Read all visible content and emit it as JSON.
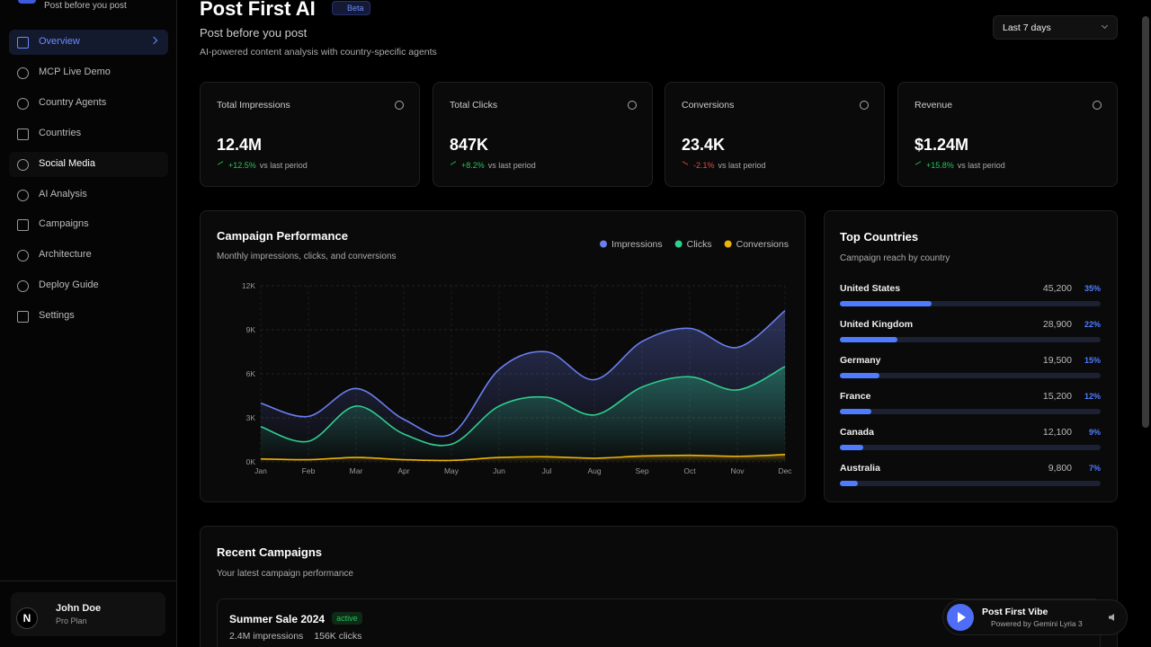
{
  "sidebar": {
    "tagline": "Post before you post",
    "nav": [
      "Overview",
      "MCP Live Demo",
      "Country Agents",
      "Countries",
      "Social Media",
      "AI Analysis",
      "Campaigns",
      "Architecture",
      "Deploy Guide",
      "Settings"
    ],
    "user": {
      "avatar": "N",
      "name": "John Doe",
      "plan": "Pro Plan"
    }
  },
  "header": {
    "title": "Post First AI",
    "badge": "Beta",
    "subtitle": "Post before you post",
    "description": "AI-powered content analysis with country-specific agents",
    "range": "Last 7 days"
  },
  "stats": [
    {
      "label": "Total Impressions",
      "value": "12.4M",
      "change": "+12.5%",
      "suffix": "vs last period"
    },
    {
      "label": "Total Clicks",
      "value": "847K",
      "change": "+8.2%",
      "suffix": "vs last period"
    },
    {
      "label": "Conversions",
      "value": "23.4K",
      "change": "-2.1%",
      "suffix": "vs last period"
    },
    {
      "label": "Revenue",
      "value": "$1.24M",
      "change": "+15.8%",
      "suffix": "vs last period"
    }
  ],
  "chart_data": {
    "type": "line",
    "title": "Campaign Performance",
    "subtitle": "Monthly impressions, clicks, and conversions",
    "categories": [
      "Jan",
      "Feb",
      "Mar",
      "Apr",
      "May",
      "Jun",
      "Jul",
      "Aug",
      "Sep",
      "Oct",
      "Nov",
      "Dec"
    ],
    "series": [
      {
        "name": "Impressions",
        "color": "#6b7ff0",
        "values": [
          4000,
          3100,
          5000,
          2900,
          1900,
          6300,
          7500,
          5600,
          8200,
          9100,
          7800,
          10300
        ]
      },
      {
        "name": "Clicks",
        "color": "#2ecf8f",
        "values": [
          2400,
          1400,
          3800,
          1900,
          1200,
          3800,
          4400,
          3200,
          5100,
          5800,
          4900,
          6500
        ]
      },
      {
        "name": "Conversions",
        "color": "#eab308",
        "values": [
          200,
          150,
          300,
          150,
          100,
          300,
          350,
          250,
          400,
          450,
          380,
          500
        ]
      }
    ],
    "ylim": [
      0,
      12000
    ],
    "yticks": [
      {
        "value": 0,
        "label": "0K"
      },
      {
        "value": 3000,
        "label": "3K"
      },
      {
        "value": 6000,
        "label": "6K"
      },
      {
        "value": 9000,
        "label": "9K"
      },
      {
        "value": 12000,
        "label": "12K"
      }
    ],
    "grid": true,
    "legend": "top-right"
  },
  "top_countries": {
    "title": "Top Countries",
    "subtitle": "Campaign reach by country",
    "items": [
      {
        "name": "United States",
        "reach": "45,200",
        "share": "35%"
      },
      {
        "name": "United Kingdom",
        "reach": "28,900",
        "share": "22%"
      },
      {
        "name": "Germany",
        "reach": "19,500",
        "share": "15%"
      },
      {
        "name": "France",
        "reach": "15,200",
        "share": "12%"
      },
      {
        "name": "Canada",
        "reach": "12,100",
        "share": "9%"
      },
      {
        "name": "Australia",
        "reach": "9,800",
        "share": "7%"
      }
    ]
  },
  "recent_campaigns": {
    "title": "Recent Campaigns",
    "subtitle": "Your latest campaign performance",
    "items": [
      {
        "name": "Summer Sale 2024",
        "status": "active",
        "impressions": "2.4M impressions",
        "clicks": "156K clicks"
      }
    ]
  },
  "player": {
    "title": "Post First Vibe",
    "subtitle": "Powered by Gemini Lyria 3"
  }
}
